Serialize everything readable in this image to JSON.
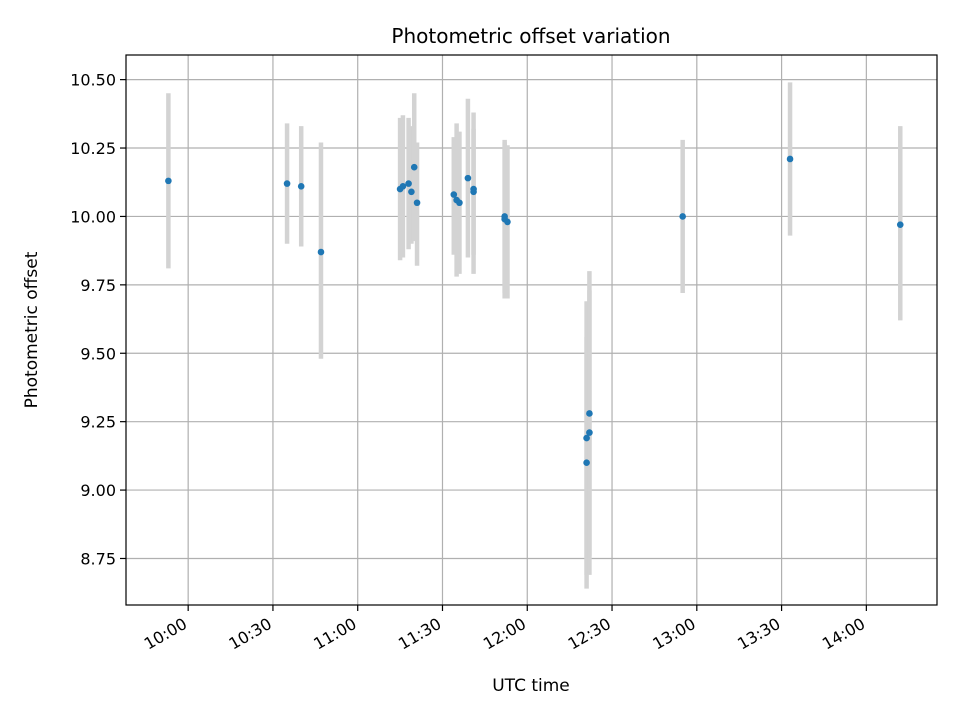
{
  "chart_data": {
    "type": "scatter",
    "title": "Photometric offset variation",
    "xlabel": "UTC time",
    "ylabel": "Photometric offset",
    "x_ticks": [
      {
        "t": "10:00",
        "label": "10:00"
      },
      {
        "t": "10:30",
        "label": "10:30"
      },
      {
        "t": "11:00",
        "label": "11:00"
      },
      {
        "t": "11:30",
        "label": "11:30"
      },
      {
        "t": "12:00",
        "label": "12:00"
      },
      {
        "t": "12:30",
        "label": "12:30"
      },
      {
        "t": "13:00",
        "label": "13:00"
      },
      {
        "t": "13:30",
        "label": "13:30"
      },
      {
        "t": "14:00",
        "label": "14:00"
      }
    ],
    "y_ticks": [
      "8.75",
      "9.00",
      "9.25",
      "9.50",
      "9.75",
      "10.00",
      "10.25",
      "10.50"
    ],
    "xlim": [
      "09:38",
      "14:25"
    ],
    "ylim": [
      8.58,
      10.59
    ],
    "grid": true,
    "colors": {
      "marker": "#1f77b4",
      "errorbar": "#d3d3d3",
      "grid": "#b0b0b0"
    },
    "points": [
      {
        "t": "09:53",
        "y": 10.13,
        "lo": 9.81,
        "hi": 10.45
      },
      {
        "t": "10:35",
        "y": 10.12,
        "lo": 9.9,
        "hi": 10.34
      },
      {
        "t": "10:40",
        "y": 10.11,
        "lo": 9.89,
        "hi": 10.33
      },
      {
        "t": "10:47",
        "y": 9.87,
        "lo": 9.48,
        "hi": 10.27
      },
      {
        "t": "11:15",
        "y": 10.1,
        "lo": 9.84,
        "hi": 10.36
      },
      {
        "t": "11:16",
        "y": 10.11,
        "lo": 9.85,
        "hi": 10.37
      },
      {
        "t": "11:18",
        "y": 10.12,
        "lo": 9.88,
        "hi": 10.36
      },
      {
        "t": "11:19",
        "y": 10.09,
        "lo": 9.9,
        "hi": 10.33
      },
      {
        "t": "11:20",
        "y": 10.18,
        "lo": 9.91,
        "hi": 10.45
      },
      {
        "t": "11:21",
        "y": 10.05,
        "lo": 9.82,
        "hi": 10.27
      },
      {
        "t": "11:34",
        "y": 10.08,
        "lo": 9.86,
        "hi": 10.29
      },
      {
        "t": "11:35",
        "y": 10.06,
        "lo": 9.78,
        "hi": 10.34
      },
      {
        "t": "11:36",
        "y": 10.05,
        "lo": 9.79,
        "hi": 10.31
      },
      {
        "t": "11:39",
        "y": 10.14,
        "lo": 9.85,
        "hi": 10.43
      },
      {
        "t": "11:41",
        "y": 10.1,
        "lo": 9.79,
        "hi": 10.38
      },
      {
        "t": "11:41",
        "y": 10.09,
        "lo": 9.86,
        "hi": 10.32
      },
      {
        "t": "11:52",
        "y": 10.0,
        "lo": 9.72,
        "hi": 10.28
      },
      {
        "t": "11:52",
        "y": 9.99,
        "lo": 9.7,
        "hi": 10.27
      },
      {
        "t": "11:53",
        "y": 9.98,
        "lo": 9.7,
        "hi": 10.26
      },
      {
        "t": "12:21",
        "y": 9.19,
        "lo": 8.69,
        "hi": 9.69
      },
      {
        "t": "12:21",
        "y": 9.1,
        "lo": 8.64,
        "hi": 9.56
      },
      {
        "t": "12:22",
        "y": 9.28,
        "lo": 8.76,
        "hi": 9.8
      },
      {
        "t": "12:22",
        "y": 9.21,
        "lo": 8.69,
        "hi": 9.73
      },
      {
        "t": "12:55",
        "y": 10.0,
        "lo": 9.72,
        "hi": 10.28
      },
      {
        "t": "13:33",
        "y": 10.21,
        "lo": 9.93,
        "hi": 10.49
      },
      {
        "t": "14:12",
        "y": 9.97,
        "lo": 9.62,
        "hi": 10.33
      }
    ]
  }
}
